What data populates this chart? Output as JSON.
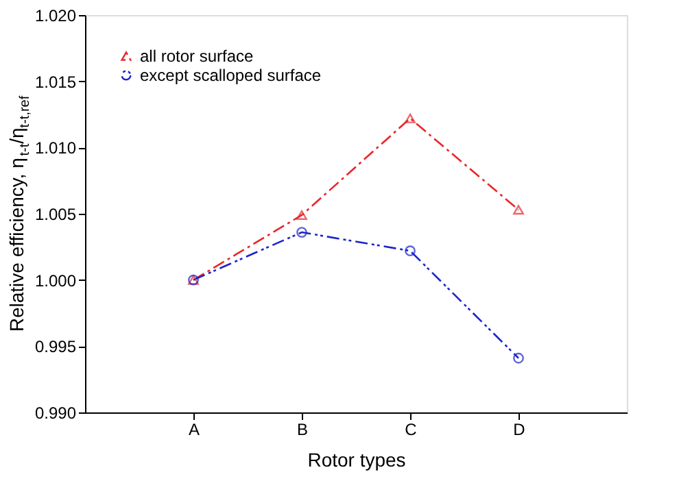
{
  "chart_data": {
    "type": "line",
    "xlabel": "Rotor types",
    "ylabel": "Relative efficiency, η$_{t-t}$/η$_{t-t,ref}$",
    "categories": [
      "A",
      "B",
      "C",
      "D"
    ],
    "series": [
      {
        "name": "all rotor surface",
        "color": "#e8262b",
        "values": [
          1.0,
          1.0049,
          1.0122,
          1.0053
        ],
        "marker": "triangle",
        "line_style": "dashed"
      },
      {
        "name": "except scalloped surface",
        "color": "#1c24c8",
        "values": [
          1.0,
          1.0036,
          1.0022,
          0.9941
        ],
        "marker": "circle",
        "line_style": "dashed"
      }
    ],
    "ylim": [
      0.99,
      1.02
    ],
    "yticks": [
      {
        "value": 0.99,
        "label": "0.990"
      },
      {
        "value": 0.995,
        "label": "0.995"
      },
      {
        "value": 1.0,
        "label": "1.000"
      },
      {
        "value": 1.005,
        "label": "1.005"
      },
      {
        "value": 1.01,
        "label": "1.010"
      },
      {
        "value": 1.015,
        "label": "1.015"
      },
      {
        "value": 1.02,
        "label": "1.020"
      }
    ],
    "legend": "top left",
    "grid": false
  }
}
